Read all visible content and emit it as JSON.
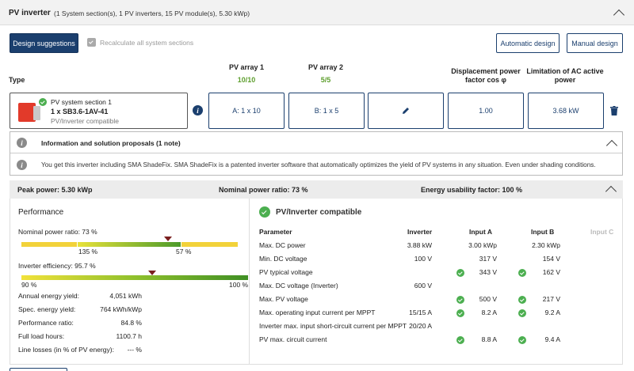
{
  "header": {
    "title": "PV inverter",
    "summary": "(1 System section(s), 1 PV inverters, 15 PV module(s), 5.30 kWp)"
  },
  "toolbar": {
    "design_suggestions": "Design suggestions",
    "recalculate": "Recalculate all system sections",
    "automatic_design": "Automatic design",
    "manual_design": "Manual design"
  },
  "columns": {
    "type": "Type",
    "pv_array_1": "PV array 1",
    "pv_array_1_count": "10/10",
    "pv_array_2": "PV array 2",
    "pv_array_2_count": "5/5",
    "cos_phi": "Displacement power factor cos φ",
    "ac_limit": "Limitation of AC active power"
  },
  "section": {
    "name": "PV system section 1",
    "model": "1 x SB3.6-1AV-41",
    "status": "PV/Inverter compatible",
    "array_a": "A: 1 x 10",
    "array_b": "B: 1 x 5",
    "cos_phi": "1.00",
    "ac_limit": "3.68 kW"
  },
  "info": {
    "title": "Information and solution proposals (1 note)",
    "note": "You get this inverter including SMA ShadeFix. SMA ShadeFix is a patented inverter software that automatically optimizes the yield of PV systems in any situation. Even under shading conditions."
  },
  "summary": {
    "peak": "Peak power: 5.30 kWp",
    "ratio": "Nominal power ratio: 73 %",
    "usability": "Energy usability factor: 100 %"
  },
  "performance": {
    "title": "Performance",
    "nominal_label": "Nominal power ratio: 73 %",
    "nominal_mark_a": "135 %",
    "nominal_mark_b": "57 %",
    "nominal_value": 0.73,
    "efficiency_label": "Inverter efficiency: 95.7 %",
    "eff_min": "90 %",
    "eff_max": "100 %",
    "efficiency_value": 0.957,
    "stats": [
      {
        "label": "Annual energy yield:",
        "value": "4,051 kWh"
      },
      {
        "label": "Spec. energy yield:",
        "value": "764 kWh/kWp"
      },
      {
        "label": "Performance ratio:",
        "value": "84.8 %"
      },
      {
        "label": "Full load hours:",
        "value": "1100.7  h"
      },
      {
        "label": "Line losses (in % of PV energy):",
        "value": "--- %"
      }
    ]
  },
  "compat": {
    "title": "PV/Inverter compatible",
    "headers": {
      "param": "Parameter",
      "inverter": "Inverter",
      "a": "Input A",
      "b": "Input B",
      "c": "Input C"
    },
    "rows": [
      {
        "param": "Max. DC power",
        "inv": "3.88 kW",
        "a": "3.00 kWp",
        "ac": false,
        "b": "2.30 kWp",
        "bc": false
      },
      {
        "param": "Min. DC voltage",
        "inv": "100 V",
        "a": "317 V",
        "ac": false,
        "b": "154 V",
        "bc": false
      },
      {
        "param": "PV typical voltage",
        "inv": "",
        "a": "343 V",
        "ac": true,
        "b": "162 V",
        "bc": true
      },
      {
        "param": "Max. DC voltage (Inverter)",
        "inv": "600 V",
        "a": "",
        "ac": false,
        "b": "",
        "bc": false
      },
      {
        "param": "Max. PV voltage",
        "inv": "",
        "a": "500 V",
        "ac": true,
        "b": "217 V",
        "bc": true
      },
      {
        "param": "Max. operating input current per MPPT",
        "inv": "15/15 A",
        "a": "8.2 A",
        "ac": true,
        "b": "9.2 A",
        "bc": true
      },
      {
        "param": "Inverter max. input short-circuit current per MPPT",
        "inv": "20/20 A",
        "a": "",
        "ac": false,
        "b": "",
        "bc": false
      },
      {
        "param": "PV max. circuit current",
        "inv": "",
        "a": "8.8 A",
        "ac": true,
        "b": "9.4 A",
        "bc": true
      }
    ]
  }
}
